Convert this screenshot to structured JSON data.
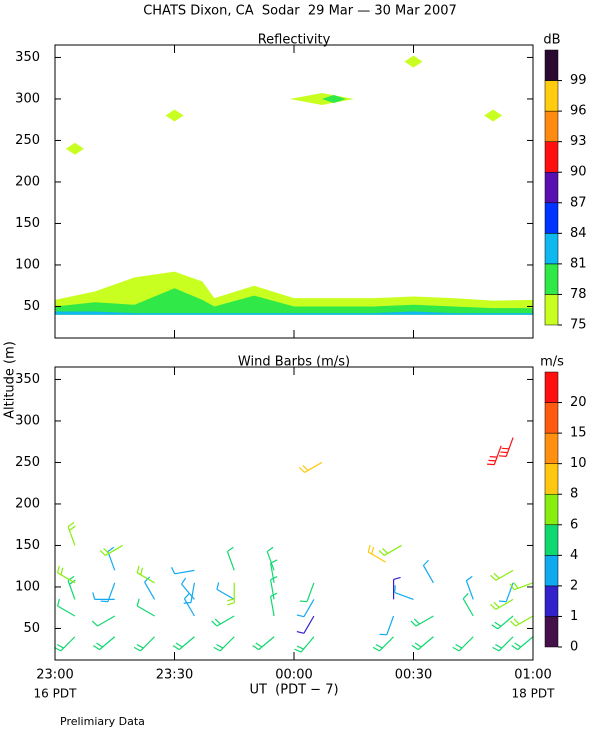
{
  "title": "CHATS Dixon, CA  Sodar  29 Mar — 30 Mar 2007",
  "y_label": "Altitude (m)",
  "x_label": "UT  (PDT − 7)",
  "x_sublabels": [
    "16 PDT",
    "18 PDT"
  ],
  "footnote": "Prelimiary Data",
  "chart_data": [
    {
      "type": "contour",
      "title": "Reflectivity",
      "xlim": [
        0,
        120
      ],
      "xticks": [
        0,
        30,
        60,
        90,
        120
      ],
      "ylim": [
        12,
        365
      ],
      "yticks": [
        50,
        100,
        150,
        200,
        250,
        300,
        350
      ],
      "x": [
        0,
        10,
        20,
        30,
        37,
        40,
        50,
        60,
        70,
        80,
        90,
        100,
        110,
        120
      ],
      "baseline": 40,
      "series": [
        {
          "color": "#c8ff20",
          "values": [
            58,
            68,
            85,
            92,
            80,
            60,
            75,
            60,
            60,
            60,
            62,
            60,
            57,
            58
          ]
        },
        {
          "color": "#30e848",
          "values": [
            50,
            55,
            52,
            72,
            58,
            50,
            63,
            50,
            50,
            50,
            52,
            50,
            48,
            48
          ]
        },
        {
          "color": "#10b8f0",
          "values": [
            44,
            44,
            42,
            42,
            42,
            42,
            42,
            42,
            42,
            42,
            44,
            42,
            42,
            42
          ]
        }
      ],
      "features": [
        {
          "color": "#c8ff20",
          "x": [
            5,
            30,
            67,
            90,
            110
          ],
          "values": [
            240,
            280,
            300,
            345,
            280
          ]
        },
        {
          "color": "#30e848",
          "x": [
            70
          ],
          "values": [
            300
          ]
        }
      ],
      "colorbar": {
        "label": "dB",
        "ticks": [
          75,
          78,
          81,
          84,
          87,
          90,
          93,
          96,
          99
        ],
        "colors": [
          "#c8ff20",
          "#30e848",
          "#10b8f0",
          "#0033ff",
          "#5a10b0",
          "#ff1010",
          "#ff8c10",
          "#ffcc10",
          "#2a0a30"
        ]
      }
    },
    {
      "type": "barbs",
      "title": "Wind Barbs (m/s)",
      "xlim": [
        0,
        120
      ],
      "xticks": [
        {
          "value": 0,
          "label": "23:00"
        },
        {
          "value": 30,
          "label": "23:30"
        },
        {
          "value": 60,
          "label": "00:00"
        },
        {
          "value": 90,
          "label": "00:30"
        },
        {
          "value": 120,
          "label": "01:00"
        }
      ],
      "ylim": [
        12,
        365
      ],
      "yticks": [
        50,
        100,
        150,
        200,
        250,
        300,
        350
      ],
      "x": [
        5,
        15,
        25,
        35,
        45,
        55,
        65,
        85,
        95,
        105,
        115,
        120,
        5,
        15,
        25,
        35,
        45,
        55,
        65,
        85,
        95,
        105,
        115,
        120,
        5,
        15,
        25,
        35,
        45,
        55,
        65,
        85,
        90,
        105,
        115,
        5,
        15,
        25,
        35,
        45,
        55,
        65,
        95,
        115,
        120,
        15,
        35,
        45,
        55,
        115,
        5,
        17,
        83,
        87,
        67,
        115,
        112
      ],
      "values": [
        40,
        40,
        40,
        40,
        40,
        40,
        40,
        40,
        40,
        40,
        40,
        40,
        65,
        65,
        65,
        65,
        65,
        65,
        65,
        65,
        65,
        65,
        65,
        65,
        85,
        85,
        85,
        85,
        85,
        85,
        85,
        85,
        85,
        85,
        85,
        105,
        105,
        105,
        105,
        105,
        105,
        105,
        105,
        105,
        105,
        120,
        120,
        120,
        120,
        120,
        150,
        150,
        130,
        150,
        250,
        280,
        270
      ],
      "speed": [
        5,
        5,
        5,
        5,
        5,
        5,
        5,
        5,
        5,
        5,
        5,
        5,
        4,
        4,
        4,
        3,
        5,
        4,
        1,
        3,
        5,
        4,
        5,
        6,
        5,
        3,
        3,
        3,
        3,
        4,
        3,
        1,
        3,
        3,
        6,
        6,
        3,
        7,
        3,
        6,
        4,
        4,
        3,
        3,
        6,
        3,
        3,
        4,
        4,
        6,
        7,
        7,
        9,
        7,
        9,
        20,
        20
      ],
      "direction": [
        225,
        230,
        225,
        230,
        225,
        230,
        220,
        225,
        230,
        225,
        225,
        230,
        300,
        240,
        300,
        330,
        240,
        350,
        210,
        200,
        240,
        330,
        230,
        240,
        340,
        270,
        330,
        320,
        300,
        350,
        210,
        0,
        290,
        340,
        240,
        300,
        200,
        300,
        190,
        180,
        350,
        200,
        330,
        200,
        250,
        340,
        260,
        340,
        340,
        240,
        340,
        240,
        300,
        240,
        240,
        200,
        200
      ],
      "colorbar": {
        "label": "m/s",
        "ticks": [
          0,
          1,
          2,
          4,
          6,
          8,
          10,
          15,
          20
        ],
        "colors": [
          "#44104a",
          "#3322cc",
          "#10aaf0",
          "#10d870",
          "#88ee10",
          "#ffc810",
          "#ff9010",
          "#ff5a10",
          "#ff1010"
        ]
      }
    }
  ]
}
